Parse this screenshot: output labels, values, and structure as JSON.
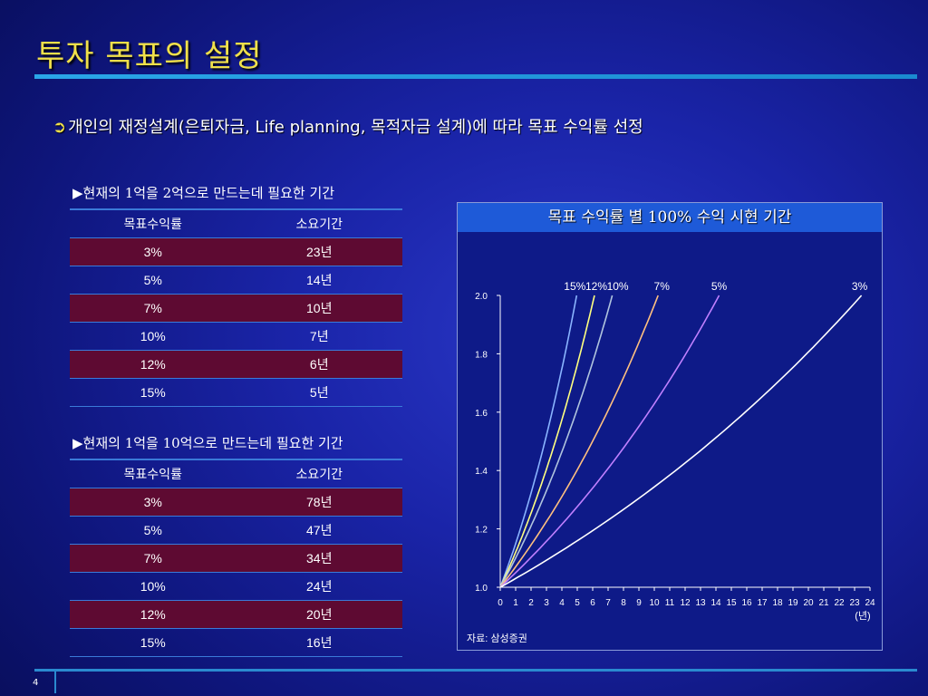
{
  "title": "투자 목표의 설정",
  "bullet": "개인의 재정설계(은퇴자금, Life planning, 목적자금 설계)에 따라 목표 수익률 선정",
  "table1": {
    "caption": "▶현재의 1억을 2억으로 만드는데 필요한 기간",
    "header": [
      "목표수익률",
      "소요기간"
    ],
    "rows": [
      [
        "3%",
        "23년"
      ],
      [
        "5%",
        "14년"
      ],
      [
        "7%",
        "10년"
      ],
      [
        "10%",
        "7년"
      ],
      [
        "12%",
        "6년"
      ],
      [
        "15%",
        "5년"
      ]
    ]
  },
  "table2": {
    "caption": "▶현재의 1억을 10억으로 만드는데 필요한 기간",
    "header": [
      "목표수익률",
      "소요기간"
    ],
    "rows": [
      [
        "3%",
        "78년"
      ],
      [
        "5%",
        "47년"
      ],
      [
        "7%",
        "34년"
      ],
      [
        "10%",
        "24년"
      ],
      [
        "12%",
        "20년"
      ],
      [
        "15%",
        "16년"
      ]
    ]
  },
  "chart_data": {
    "type": "line",
    "title": "목표 수익률 별 100% 수익 시현 기간",
    "xlabel": "(년)",
    "xlim": [
      0,
      24
    ],
    "ylim": [
      1.0,
      2.0
    ],
    "x_ticks": [
      0,
      1,
      2,
      3,
      4,
      5,
      6,
      7,
      8,
      9,
      10,
      11,
      12,
      13,
      14,
      15,
      16,
      17,
      18,
      19,
      20,
      21,
      22,
      23,
      24
    ],
    "y_ticks": [
      "1.0",
      "1.2",
      "1.4",
      "1.6",
      "1.8",
      "2.0"
    ],
    "series": [
      {
        "name": "15%",
        "rate": 0.15,
        "color": "#8ab4ff"
      },
      {
        "name": "12%",
        "rate": 0.12,
        "color": "#ffff80"
      },
      {
        "name": "10%",
        "rate": 0.1,
        "color": "#b0c4de"
      },
      {
        "name": "7%",
        "rate": 0.07,
        "color": "#ffc080"
      },
      {
        "name": "5%",
        "rate": 0.05,
        "color": "#c080ff"
      },
      {
        "name": "3%",
        "rate": 0.03,
        "color": "#ffffff"
      }
    ],
    "source": "자료: 삼성증권"
  },
  "page_number": "4"
}
